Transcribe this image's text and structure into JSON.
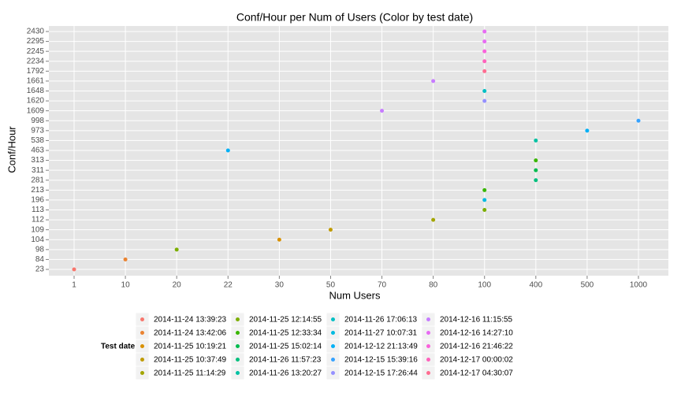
{
  "chart_data": {
    "type": "scatter",
    "title": "Conf/Hour per Num of Users (Color by test date)",
    "xlabel": "Num Users",
    "ylabel": "Conf/Hour",
    "legend_title": "Test date",
    "categories": [
      1,
      10,
      20,
      22,
      30,
      50,
      70,
      80,
      100,
      400,
      500,
      1000
    ],
    "y_categories": [
      23,
      84,
      98,
      104,
      109,
      112,
      113,
      196,
      213,
      281,
      311,
      313,
      463,
      538,
      973,
      998,
      1609,
      1620,
      1648,
      1661,
      1792,
      2234,
      2245,
      2295,
      2430
    ],
    "grid": true,
    "series": [
      {
        "name": "2014-11-24 13:39:23",
        "color": "#F8766D",
        "x": [
          1
        ],
        "values": [
          23
        ]
      },
      {
        "name": "2014-11-24 13:42:06",
        "color": "#EA8331",
        "x": [
          10
        ],
        "values": [
          84
        ]
      },
      {
        "name": "2014-11-25 10:19:21",
        "color": "#D89000",
        "x": [
          30
        ],
        "values": [
          104
        ]
      },
      {
        "name": "2014-11-25 10:37:49",
        "color": "#C09B00",
        "x": [
          50
        ],
        "values": [
          109
        ]
      },
      {
        "name": "2014-11-25 11:14:29",
        "color": "#A3A500",
        "x": [
          80
        ],
        "values": [
          112
        ]
      },
      {
        "name": "2014-11-25 12:14:55",
        "color": "#7CAE00",
        "x": [
          20,
          100
        ],
        "values": [
          98,
          113
        ]
      },
      {
        "name": "2014-11-25 12:33:34",
        "color": "#39B600",
        "x": [
          100,
          400
        ],
        "values": [
          213,
          313
        ]
      },
      {
        "name": "2014-11-25 15:02:14",
        "color": "#00BB4E",
        "x": [
          400
        ],
        "values": [
          311
        ]
      },
      {
        "name": "2014-11-26 11:57:23",
        "color": "#00BF7D",
        "x": [
          400
        ],
        "values": [
          281
        ]
      },
      {
        "name": "2014-11-26 13:20:27",
        "color": "#00C1A3",
        "x": [
          400
        ],
        "values": [
          538
        ]
      },
      {
        "name": "2014-11-26 17:06:13",
        "color": "#00BFC4",
        "x": [
          100
        ],
        "values": [
          1648
        ]
      },
      {
        "name": "2014-11-27 10:07:31",
        "color": "#00BAE0",
        "x": [
          100
        ],
        "values": [
          196
        ]
      },
      {
        "name": "2014-12-12 21:13:49",
        "color": "#00B0F6",
        "x": [
          22,
          500
        ],
        "values": [
          463,
          973
        ]
      },
      {
        "name": "2014-12-15 15:39:16",
        "color": "#35A2FF",
        "x": [
          1000
        ],
        "values": [
          998
        ]
      },
      {
        "name": "2014-12-15 17:26:44",
        "color": "#9590FF",
        "x": [
          100
        ],
        "values": [
          1620
        ]
      },
      {
        "name": "2014-12-16 11:15:55",
        "color": "#C77CFF",
        "x": [
          70,
          80
        ],
        "values": [
          1609,
          1661
        ]
      },
      {
        "name": "2014-12-16 14:27:10",
        "color": "#E76BF3",
        "x": [
          100,
          100
        ],
        "values": [
          2295,
          2430
        ]
      },
      {
        "name": "2014-12-16 21:46:22",
        "color": "#FA62DB",
        "x": [
          100
        ],
        "values": [
          2245
        ]
      },
      {
        "name": "2014-12-17 00:00:02",
        "color": "#FF62BC",
        "x": [
          100
        ],
        "values": [
          2234
        ]
      },
      {
        "name": "2014-12-17 04:30:07",
        "color": "#FF6C91",
        "x": [
          100
        ],
        "values": [
          1792
        ]
      }
    ]
  }
}
